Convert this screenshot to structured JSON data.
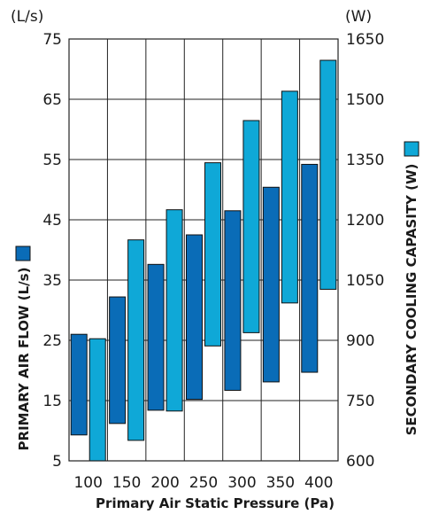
{
  "chart_data": {
    "type": "bar",
    "subtype": "floating-range",
    "categories": [
      "100",
      "150",
      "200",
      "250",
      "300",
      "350",
      "400"
    ],
    "xlabel": "Primary Air Static Pressure (Pa)",
    "y_left": {
      "label": "PRIMARY AIR FLOW (L/s)",
      "unit": "(L/s)",
      "ylim": [
        5,
        75
      ],
      "ticks": [
        5,
        15,
        25,
        35,
        45,
        55,
        65,
        75
      ]
    },
    "y_right": {
      "label": "SECONDARY COOLING CAPASITY (W)",
      "unit": "(W)",
      "ylim": [
        600,
        1650
      ],
      "ticks": [
        600,
        750,
        900,
        1050,
        1200,
        1350,
        1500,
        1650
      ]
    },
    "series": [
      {
        "name": "PRIMARY AIR FLOW (L/s)",
        "axis": "left",
        "color": "#0a6cb7",
        "low": [
          9.3,
          11.2,
          13.4,
          15.2,
          16.7,
          18.1,
          19.7
        ],
        "high": [
          26.0,
          32.2,
          37.6,
          42.5,
          46.5,
          50.4,
          54.2
        ]
      },
      {
        "name": "SECONDARY COOLING CAPASITY (W)",
        "axis": "right",
        "color": "#0fa8d7",
        "low": [
          600,
          651,
          724,
          886,
          919,
          993,
          1027
        ],
        "high": [
          904,
          1150,
          1225,
          1342,
          1447,
          1520,
          1597
        ]
      }
    ],
    "grid": true,
    "legend": "axis-labels"
  }
}
